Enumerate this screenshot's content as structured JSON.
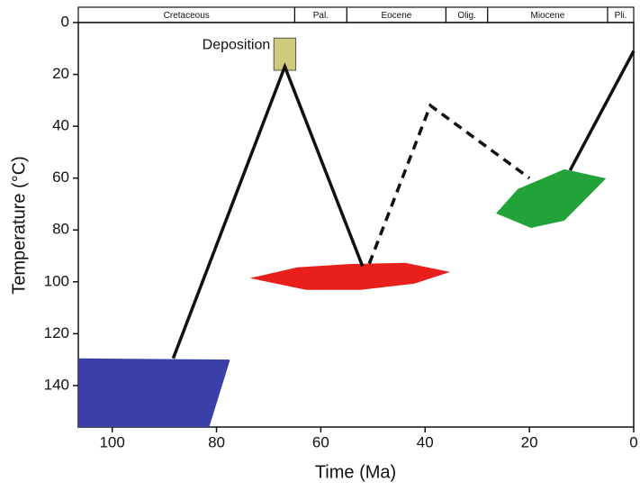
{
  "chart_data": {
    "type": "thermal-history",
    "xlabel": "Time (Ma)",
    "ylabel": "Temperature (°C)",
    "xlim": [
      106.5,
      0
    ],
    "ylim": [
      0,
      156
    ],
    "xticks": [
      100,
      80,
      60,
      40,
      20,
      0
    ],
    "yticks": [
      0,
      20,
      40,
      60,
      80,
      100,
      120,
      140
    ],
    "periods": [
      {
        "name": "Cretaceous",
        "start": 106.5,
        "end": 65
      },
      {
        "name": "Pal.",
        "start": 65,
        "end": 55
      },
      {
        "name": "Eocene",
        "start": 55,
        "end": 36
      },
      {
        "name": "Olig.",
        "start": 36,
        "end": 28
      },
      {
        "name": "Miocene",
        "start": 28,
        "end": 5
      },
      {
        "name": "Pli.",
        "start": 5,
        "end": 0
      }
    ],
    "boxes": [
      {
        "color": "#3b3fa8",
        "x": [
          106.5,
          77.4,
          81.4,
          106.5
        ],
        "y": [
          129.5,
          130,
          156,
          156
        ]
      },
      {
        "color": "#e8201c",
        "x": [
          73.6,
          64.5,
          54.1,
          43.8,
          35.2,
          42.1,
          52.4,
          62.8
        ],
        "y": [
          98.6,
          94.4,
          93.1,
          92.7,
          96.2,
          100.7,
          103.1,
          103.1
        ]
      },
      {
        "color": "#22a33a",
        "x": [
          26.4,
          22.2,
          13.3,
          5.3,
          13.3,
          19.7
        ],
        "y": [
          73.6,
          64.2,
          56.6,
          60.1,
          76.4,
          79.2
        ]
      },
      {
        "color": "#cfcb7c",
        "label": "Deposition",
        "x": [
          69,
          64.8,
          64.8,
          69
        ],
        "y": [
          6,
          6,
          18.4,
          18.4
        ]
      }
    ],
    "paths": [
      {
        "dashed": false,
        "x": [
          88.3,
          66.9,
          52
        ],
        "y": [
          129.5,
          17,
          94
        ]
      },
      {
        "dashed": true,
        "x": [
          50.7,
          39,
          20
        ],
        "y": [
          93,
          32,
          60
        ]
      },
      {
        "dashed": false,
        "x": [
          12.2,
          0
        ],
        "y": [
          57,
          11
        ]
      }
    ]
  }
}
